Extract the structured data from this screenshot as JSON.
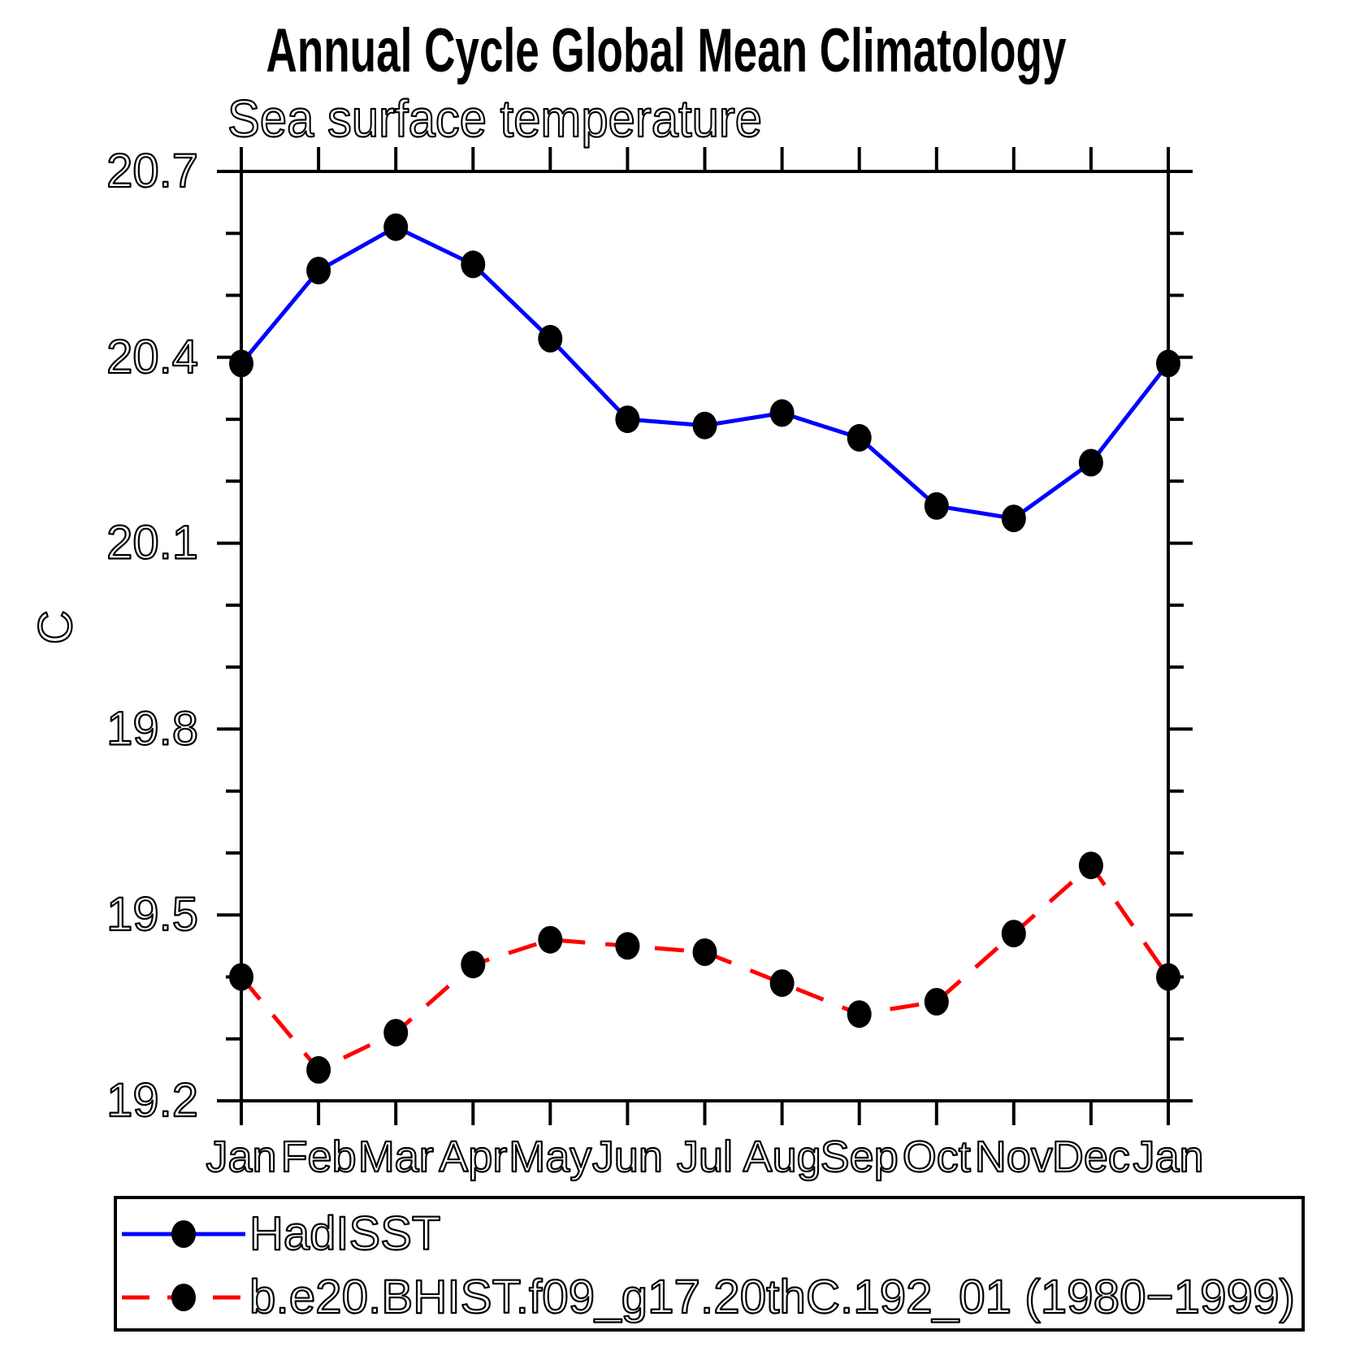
{
  "page": {
    "background": "#ffffff"
  },
  "chart_data": {
    "type": "line",
    "title": "Annual Cycle Global Mean Climatology",
    "subtitle": "Sea surface temperature",
    "xlabel": "",
    "ylabel": "C",
    "categories": [
      "Jan",
      "Feb",
      "Mar",
      "Apr",
      "May",
      "Jun",
      "Jul",
      "Aug",
      "Sep",
      "Oct",
      "Nov",
      "Dec",
      "Jan"
    ],
    "ylim": [
      19.2,
      20.7
    ],
    "yticks": [
      "19.2",
      "19.5",
      "19.8",
      "20.1",
      "20.4",
      "20.7"
    ],
    "minor_tick_step": 0.1,
    "grid": false,
    "tick_direction": "outward",
    "axis_color": "#000000",
    "legend_position": "bottom-left-box",
    "series": [
      {
        "name": "HadISST",
        "line_color": "#0000ff",
        "line_style": "solid",
        "marker": "filled-circle",
        "marker_color": "#000000",
        "values": [
          20.39,
          20.54,
          20.61,
          20.55,
          20.43,
          20.3,
          20.29,
          20.31,
          20.27,
          20.16,
          20.14,
          20.23,
          20.39
        ]
      },
      {
        "name": "b.e20.BHIST.f09_g17.20thC.192_01 (1980−1999)",
        "line_color": "#ff0000",
        "line_style": "dashed",
        "marker": "filled-circle",
        "marker_color": "#000000",
        "values": [
          19.4,
          19.25,
          19.31,
          19.42,
          19.46,
          19.45,
          19.44,
          19.39,
          19.34,
          19.36,
          19.47,
          19.58,
          19.4
        ]
      }
    ]
  }
}
